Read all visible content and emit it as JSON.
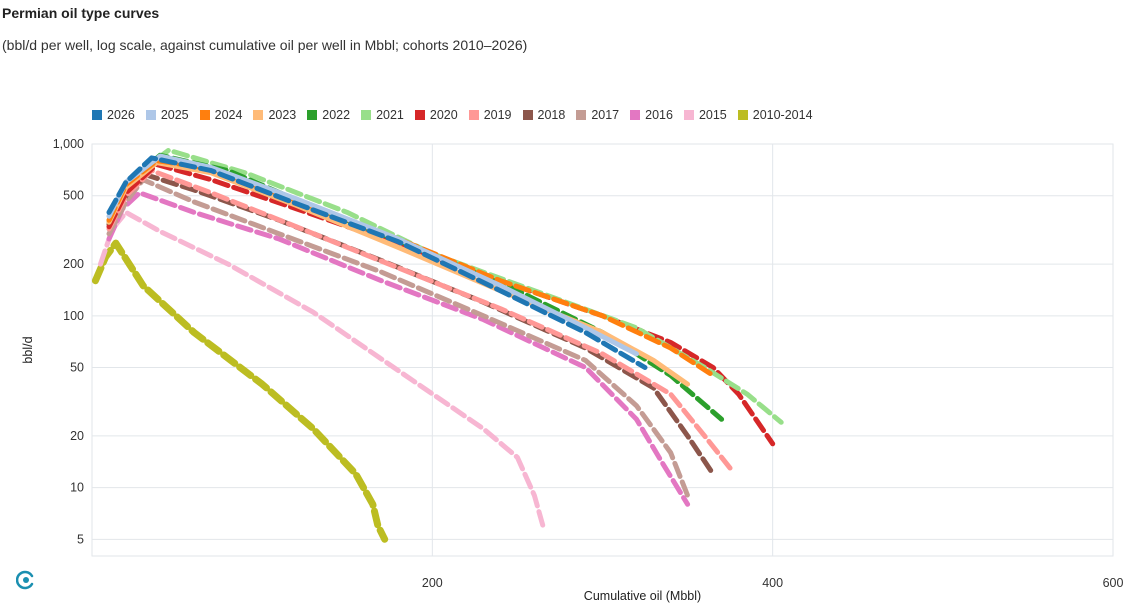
{
  "header": {
    "title": "Permian oil type curves",
    "subtitle": "(bbl/d per well, log scale, against cumulative oil per well in Mbbl; cohorts 2010–2026)"
  },
  "icons": {
    "logo": "brand-logo-icon"
  },
  "chart_data": {
    "type": "line",
    "title": "Permian oil type curves",
    "subtitle": "(bbl/d per well, log scale, against cumulative oil per well in Mbbl; cohorts 2010–2026)",
    "xlabel": "Cumulative oil (Mbbl)",
    "ylabel": "bbl/d",
    "xlim": [
      0,
      600
    ],
    "ylim": [
      4,
      1000
    ],
    "y_scale": "log",
    "x_ticks": [
      200,
      400,
      600
    ],
    "x_tick_labels": [
      "200",
      "400",
      "600"
    ],
    "y_ticks": [
      5,
      10,
      20,
      50,
      100,
      200,
      500,
      1000
    ],
    "y_tick_labels": [
      "5",
      "10",
      "20",
      "50",
      "100",
      "200",
      "500",
      "1,000"
    ],
    "grid": true,
    "legend_position": "top-left",
    "series": [
      {
        "name": "2026",
        "color": "#1f77b4",
        "style": "dashed",
        "x": [
          10,
          20,
          35,
          70,
          120,
          180,
          240,
          290,
          325
        ],
        "y": [
          400,
          600,
          830,
          700,
          450,
          270,
          140,
          80,
          50
        ]
      },
      {
        "name": "2025",
        "color": "#aec7e8",
        "style": "solid",
        "x": [
          10,
          20,
          40,
          70,
          120,
          180,
          240,
          290,
          320
        ],
        "y": [
          380,
          600,
          850,
          730,
          480,
          280,
          150,
          85,
          60
        ]
      },
      {
        "name": "2024",
        "color": "#ff7f0e",
        "style": "dashed",
        "x": [
          10,
          20,
          38,
          70,
          120,
          180,
          240,
          300,
          340,
          365
        ],
        "y": [
          360,
          580,
          800,
          720,
          470,
          280,
          160,
          100,
          65,
          45
        ]
      },
      {
        "name": "2023",
        "color": "#ffbb78",
        "style": "solid",
        "x": [
          10,
          20,
          38,
          70,
          120,
          180,
          240,
          300,
          330,
          350
        ],
        "y": [
          350,
          560,
          780,
          680,
          440,
          250,
          140,
          80,
          55,
          40
        ]
      },
      {
        "name": "2022",
        "color": "#2ca02c",
        "style": "dashed",
        "x": [
          10,
          20,
          40,
          80,
          130,
          190,
          250,
          300,
          340,
          370
        ],
        "y": [
          350,
          580,
          860,
          700,
          430,
          250,
          140,
          80,
          45,
          25
        ]
      },
      {
        "name": "2021",
        "color": "#98df8a",
        "style": "dashed",
        "x": [
          10,
          22,
          45,
          90,
          150,
          200,
          260,
          320,
          360,
          385,
          405
        ],
        "y": [
          360,
          620,
          920,
          680,
          400,
          230,
          140,
          85,
          50,
          35,
          24
        ]
      },
      {
        "name": "2020",
        "color": "#d62728",
        "style": "dashed",
        "x": [
          10,
          20,
          38,
          70,
          120,
          180,
          240,
          300,
          340,
          365,
          380,
          400
        ],
        "y": [
          330,
          520,
          760,
          620,
          420,
          260,
          160,
          100,
          70,
          50,
          35,
          18
        ]
      },
      {
        "name": "2019",
        "color": "#ff9896",
        "style": "dashed",
        "x": [
          10,
          20,
          35,
          70,
          120,
          180,
          240,
          300,
          340,
          360,
          375
        ],
        "y": [
          320,
          500,
          700,
          520,
          330,
          190,
          110,
          60,
          35,
          20,
          13
        ]
      },
      {
        "name": "2018",
        "color": "#8c564b",
        "style": "dashed",
        "x": [
          10,
          20,
          32,
          60,
          110,
          170,
          230,
          290,
          330,
          350,
          365
        ],
        "y": [
          340,
          500,
          660,
          540,
          360,
          210,
          120,
          65,
          38,
          20,
          12
        ]
      },
      {
        "name": "2017",
        "color": "#c49c94",
        "style": "dashed",
        "x": [
          10,
          20,
          30,
          60,
          110,
          170,
          230,
          290,
          320,
          340,
          350
        ],
        "y": [
          300,
          460,
          620,
          460,
          300,
          180,
          100,
          55,
          30,
          16,
          9
        ]
      },
      {
        "name": "2016",
        "color": "#e377c2",
        "style": "dashed",
        "x": [
          10,
          18,
          28,
          60,
          110,
          170,
          230,
          290,
          320,
          335,
          350
        ],
        "y": [
          280,
          420,
          520,
          400,
          280,
          160,
          95,
          50,
          25,
          14,
          8
        ]
      },
      {
        "name": "2015",
        "color": "#f7b6d2",
        "style": "dashed",
        "x": [
          5,
          12,
          20,
          40,
          80,
          130,
          180,
          230,
          250,
          260,
          265
        ],
        "y": [
          200,
          320,
          400,
          310,
          200,
          105,
          48,
          22,
          15,
          9,
          6
        ]
      },
      {
        "name": "2010-2014",
        "color": "#bcbd22",
        "style": "dashed",
        "x": [
          2,
          8,
          14,
          30,
          60,
          100,
          130,
          155,
          165,
          168,
          172
        ],
        "y": [
          160,
          220,
          265,
          150,
          80,
          40,
          22,
          12,
          8,
          6,
          5
        ]
      }
    ]
  }
}
